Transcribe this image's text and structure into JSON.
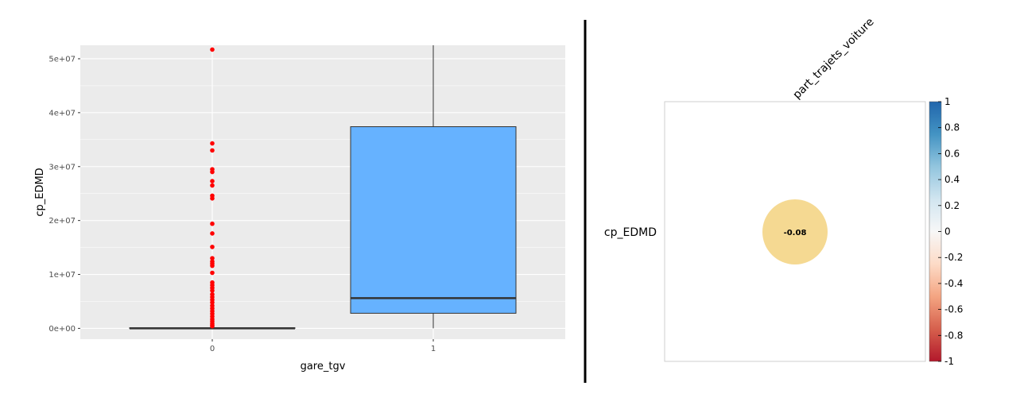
{
  "colors": {
    "panel_background": "#ebebeb",
    "grid": "#ffffff",
    "box_fill": "#66b2ff",
    "outlier": "#ff0000",
    "median": "#333333",
    "corr_circle": "#f5d992",
    "divider": "#000000"
  },
  "chart_data": [
    {
      "type": "box",
      "xlabel": "gare_tgv",
      "ylabel": "cp_EDMD",
      "categories": [
        "0",
        "1"
      ],
      "ylim": [
        -2000000,
        52500000
      ],
      "yticks": [
        0,
        10000000,
        20000000,
        30000000,
        40000000,
        50000000
      ],
      "ytick_labels": [
        "0e+00",
        "1e+07",
        "2e+07",
        "3e+07",
        "4e+07",
        "5e+07"
      ],
      "grid": true,
      "boxes": [
        {
          "category": "0",
          "min": 0,
          "q1": 0,
          "median": 0,
          "q3": 100000,
          "max": 250000
        },
        {
          "category": "1",
          "min": 0,
          "q1": 2800000,
          "median": 5600000,
          "q3": 37400000,
          "max": 52500000
        }
      ],
      "outliers": [
        {
          "category": "0",
          "values": [
            51700000,
            34300000,
            33000000,
            29500000,
            29000000,
            27300000,
            26500000,
            24600000,
            24100000,
            19400000,
            17600000,
            15100000,
            13000000,
            12400000,
            12000000,
            11600000,
            10300000,
            8500000,
            8000000,
            7500000,
            7000000,
            6300000,
            5800000,
            5300000,
            4800000,
            4200000,
            3700000,
            3200000,
            2700000,
            2200000,
            1700000,
            1300000,
            900000,
            600000,
            400000
          ]
        }
      ]
    },
    {
      "type": "heatmap",
      "rows": [
        "cp_EDMD"
      ],
      "columns": [
        "part_trajets_voiture"
      ],
      "values": [
        [
          -0.08
        ]
      ],
      "value_labels": [
        "-0.08"
      ],
      "colorbar_range": [
        -1,
        1
      ],
      "colorbar_ticks": [
        "1",
        "0.8",
        "0.6",
        "0.4",
        "0.2",
        "0",
        "-0.2",
        "-0.4",
        "-0.6",
        "-0.8",
        "-1"
      ],
      "colorbar_colors": [
        "#2166ac",
        "#4393c3",
        "#92c5de",
        "#d1e5f0",
        "#f7f7f7",
        "#fddbc7",
        "#f4a582",
        "#d6604d",
        "#b2182b"
      ]
    }
  ]
}
